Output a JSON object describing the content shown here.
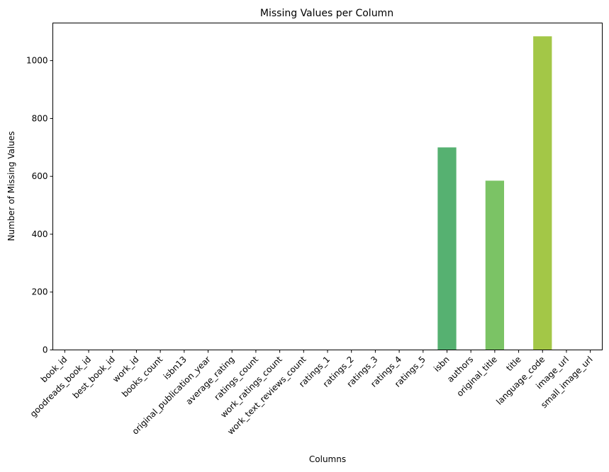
{
  "chart_data": {
    "type": "bar",
    "title": "Missing Values per Column",
    "xlabel": "Columns",
    "ylabel": "Number of Missing Values",
    "ylim": [
      0,
      1130
    ],
    "yticks": [
      0,
      200,
      400,
      600,
      800,
      1000
    ],
    "grid": false,
    "legend": "none",
    "categories": [
      "book_id",
      "goodreads_book_id",
      "best_book_id",
      "work_id",
      "books_count",
      "isbn13",
      "original_publication_year",
      "average_rating",
      "ratings_count",
      "work_ratings_count",
      "work_text_reviews_count",
      "ratings_1",
      "ratings_2",
      "ratings_3",
      "ratings_4",
      "ratings_5",
      "isbn",
      "authors",
      "original_title",
      "title",
      "language_code",
      "image_url",
      "small_image_url"
    ],
    "values": [
      0,
      0,
      0,
      0,
      0,
      0,
      0,
      0,
      0,
      0,
      0,
      0,
      0,
      0,
      0,
      0,
      700,
      0,
      585,
      0,
      1084,
      0,
      0
    ],
    "bar_colors": {
      "isbn": "#56b171",
      "original_title": "#7bc365",
      "language_code": "#a3c747"
    },
    "default_bar_color": "#56b171",
    "axis_color": "#000000"
  }
}
